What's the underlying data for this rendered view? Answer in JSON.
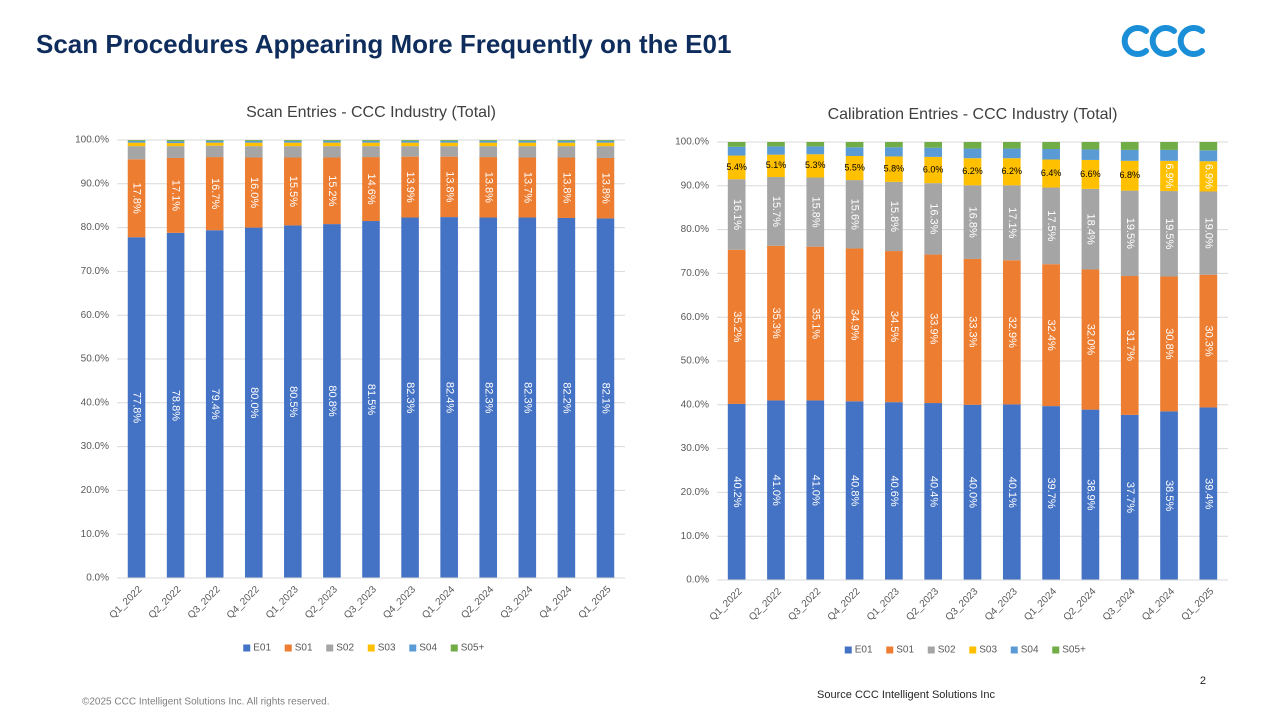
{
  "title": "Scan Procedures Appearing More Frequently on the E01",
  "footer": {
    "copyright": "©2025 CCC Intelligent Solutions Inc. All rights reserved.",
    "source": "Source CCC Intelligent Solutions Inc",
    "page": "2"
  },
  "chart_data": [
    {
      "type": "stacked_bar",
      "title": "Scan Entries - CCC Industry (Total)",
      "categories": [
        "Q1_2022",
        "Q2_2022",
        "Q3_2022",
        "Q4_2022",
        "Q1_2023",
        "Q2_2023",
        "Q3_2023",
        "Q4_2023",
        "Q1_2024",
        "Q2_2024",
        "Q3_2024",
        "Q4_2024",
        "Q1_2025"
      ],
      "ylim": [
        0,
        100
      ],
      "yticks": [
        {
          "value": 0,
          "label": "0.0%"
        },
        {
          "value": 10,
          "label": "10.0%"
        },
        {
          "value": 20,
          "label": "20.0%"
        },
        {
          "value": 30,
          "label": "30.0%"
        },
        {
          "value": 40,
          "label": "40.0%"
        },
        {
          "value": 50,
          "label": "50.0%"
        },
        {
          "value": 60,
          "label": "60.0%"
        },
        {
          "value": 70,
          "label": "70.0%"
        },
        {
          "value": 80,
          "label": "80.0%"
        },
        {
          "value": 90,
          "label": "90.0%"
        },
        {
          "value": 100,
          "label": "100.0%"
        }
      ],
      "grid": true,
      "legend": "bottom",
      "series": [
        {
          "name": "E01",
          "color": "#4472c4",
          "values": [
            77.8,
            78.8,
            79.4,
            80.0,
            80.5,
            80.8,
            81.5,
            82.3,
            82.4,
            82.3,
            82.3,
            82.2,
            82.1
          ],
          "value_labels": [
            "77.8%",
            "78.8%",
            "79.4%",
            "80.0%",
            "80.5%",
            "80.8%",
            "81.5%",
            "82.3%",
            "82.4%",
            "82.3%",
            "82.3%",
            "82.2%",
            "82.1%"
          ]
        },
        {
          "name": "S01",
          "color": "#ed7d31",
          "values": [
            17.8,
            17.1,
            16.7,
            16.0,
            15.5,
            15.2,
            14.6,
            13.9,
            13.8,
            13.8,
            13.7,
            13.8,
            13.8
          ],
          "value_labels": [
            "17.8%",
            "17.1%",
            "16.7%",
            "16.0%",
            "15.5%",
            "15.2%",
            "14.6%",
            "13.9%",
            "13.8%",
            "13.8%",
            "13.7%",
            "13.8%",
            "13.8%"
          ]
        },
        {
          "name": "S02",
          "color": "#a5a5a5",
          "values": [
            3.0,
            2.7,
            2.6,
            2.6,
            2.6,
            2.6,
            2.5,
            2.4,
            2.4,
            2.5,
            2.6,
            2.6,
            2.7
          ]
        },
        {
          "name": "S03",
          "color": "#ffc000",
          "values": [
            0.8,
            0.7,
            0.7,
            0.8,
            0.8,
            0.8,
            0.8,
            0.8,
            0.8,
            0.8,
            0.8,
            0.8,
            0.8
          ]
        },
        {
          "name": "S04",
          "color": "#5b9bd5",
          "values": [
            0.4,
            0.4,
            0.4,
            0.4,
            0.4,
            0.4,
            0.4,
            0.4,
            0.4,
            0.4,
            0.4,
            0.4,
            0.4
          ]
        },
        {
          "name": "S05+",
          "color": "#70ad47",
          "values": [
            0.2,
            0.3,
            0.2,
            0.2,
            0.2,
            0.2,
            0.2,
            0.2,
            0.2,
            0.2,
            0.2,
            0.2,
            0.2
          ]
        }
      ]
    },
    {
      "type": "stacked_bar",
      "title": "Calibration Entries - CCC Industry (Total)",
      "categories": [
        "Q1_2022",
        "Q2_2022",
        "Q3_2022",
        "Q4_2022",
        "Q1_2023",
        "Q2_2023",
        "Q3_2023",
        "Q4_2023",
        "Q1_2024",
        "Q2_2024",
        "Q3_2024",
        "Q4_2024",
        "Q1_2025"
      ],
      "ylim": [
        0,
        100
      ],
      "yticks": [
        {
          "value": 0,
          "label": "0.0%"
        },
        {
          "value": 10,
          "label": "10.0%"
        },
        {
          "value": 20,
          "label": "20.0%"
        },
        {
          "value": 30,
          "label": "30.0%"
        },
        {
          "value": 40,
          "label": "40.0%"
        },
        {
          "value": 50,
          "label": "50.0%"
        },
        {
          "value": 60,
          "label": "60.0%"
        },
        {
          "value": 70,
          "label": "70.0%"
        },
        {
          "value": 80,
          "label": "80.0%"
        },
        {
          "value": 90,
          "label": "90.0%"
        },
        {
          "value": 100,
          "label": "100.0%"
        }
      ],
      "grid": true,
      "legend": "bottom",
      "series": [
        {
          "name": "E01",
          "color": "#4472c4",
          "values": [
            40.2,
            41.0,
            41.0,
            40.8,
            40.6,
            40.4,
            40.0,
            40.1,
            39.7,
            38.9,
            37.7,
            38.5,
            39.4
          ],
          "value_labels": [
            "40.2%",
            "41.0%",
            "41.0%",
            "40.8%",
            "40.6%",
            "40.4%",
            "40.0%",
            "40.1%",
            "39.7%",
            "38.9%",
            "37.7%",
            "38.5%",
            "39.4%"
          ]
        },
        {
          "name": "S01",
          "color": "#ed7d31",
          "values": [
            35.2,
            35.3,
            35.1,
            34.9,
            34.5,
            33.9,
            33.3,
            32.9,
            32.4,
            32.0,
            31.7,
            30.8,
            30.3
          ],
          "value_labels": [
            "35.2%",
            "35.3%",
            "35.1%",
            "34.9%",
            "34.5%",
            "33.9%",
            "33.3%",
            "32.9%",
            "32.4%",
            "32.0%",
            "31.7%",
            "30.8%",
            "30.3%"
          ]
        },
        {
          "name": "S02",
          "color": "#a5a5a5",
          "values": [
            16.1,
            15.7,
            15.8,
            15.6,
            15.8,
            16.3,
            16.8,
            17.1,
            17.5,
            18.4,
            19.5,
            19.5,
            19.0
          ],
          "value_labels": [
            "16.1%",
            "15.7%",
            "15.8%",
            "15.6%",
            "15.8%",
            "16.3%",
            "16.8%",
            "17.1%",
            "17.5%",
            "18.4%",
            "19.5%",
            "19.5%",
            "19.0%"
          ]
        },
        {
          "name": "S03",
          "color": "#ffc000",
          "values": [
            5.4,
            5.1,
            5.3,
            5.5,
            5.8,
            6.0,
            6.2,
            6.2,
            6.4,
            6.6,
            6.8,
            6.9,
            6.9
          ],
          "value_labels": [
            "5.4%",
            "5.1%",
            "5.3%",
            "5.5%",
            "5.8%",
            "6.0%",
            "6.2%",
            "6.2%",
            "6.4%",
            "6.6%",
            "6.8%",
            "6.9%",
            "6.9%"
          ]
        },
        {
          "name": "S04",
          "color": "#5b9bd5",
          "values": [
            2.0,
            1.9,
            1.8,
            2.0,
            2.1,
            2.1,
            2.2,
            2.2,
            2.4,
            2.4,
            2.5,
            2.5,
            2.5
          ]
        },
        {
          "name": "S05+",
          "color": "#70ad47",
          "values": [
            1.1,
            1.0,
            1.0,
            1.2,
            1.2,
            1.3,
            1.5,
            1.5,
            1.6,
            1.7,
            1.8,
            1.8,
            1.9
          ]
        }
      ]
    }
  ]
}
